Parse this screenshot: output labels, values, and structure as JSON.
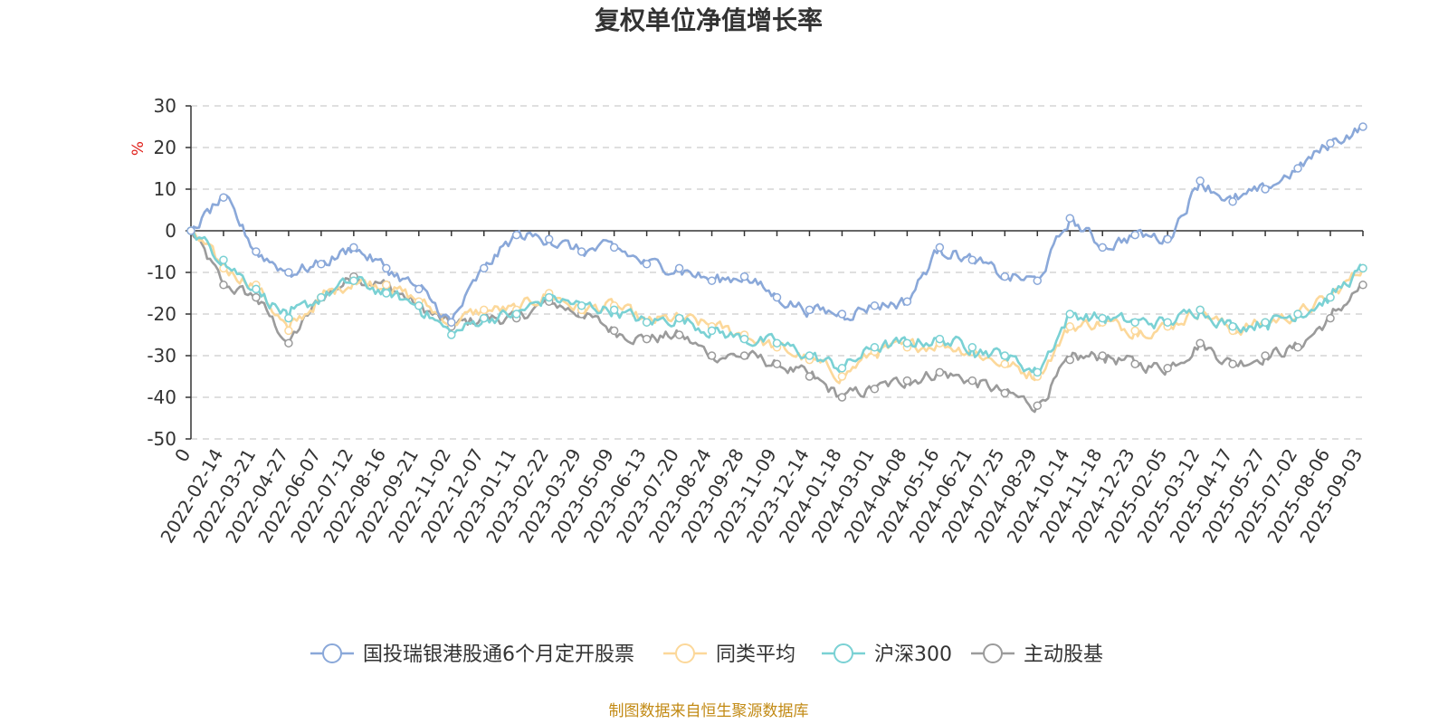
{
  "chart_data": {
    "type": "line",
    "title": "复权单位净值增长率",
    "ylabel": "%",
    "ylim": [
      -50,
      30
    ],
    "yticks": [
      30,
      20,
      10,
      0,
      -10,
      -20,
      -30,
      -40,
      -50
    ],
    "grid": true,
    "legend_position": "bottom",
    "source": "制图数据来自恒生聚源数据库",
    "x": [
      "0",
      "2022-02-14",
      "2022-03-21",
      "2022-04-27",
      "2022-06-07",
      "2022-07-12",
      "2022-08-16",
      "2022-09-21",
      "2022-11-02",
      "2022-12-07",
      "2023-01-11",
      "2023-02-22",
      "2023-03-29",
      "2023-05-09",
      "2023-06-13",
      "2023-07-20",
      "2023-08-24",
      "2023-09-28",
      "2023-11-09",
      "2023-12-14",
      "2024-01-18",
      "2024-03-01",
      "2024-04-08",
      "2024-05-16",
      "2024-06-21",
      "2024-07-25",
      "2024-08-29",
      "2024-10-14",
      "2024-11-18",
      "2024-12-23",
      "2025-02-05",
      "2025-03-12",
      "2025-04-17",
      "2025-05-27",
      "2025-07-02",
      "2025-08-06",
      "2025-09-03"
    ],
    "series": [
      {
        "name": "国投瑞银港股通6个月定开股票",
        "color": "#8aa8d9",
        "values": [
          0,
          8,
          -5,
          -10,
          -8,
          -4,
          -9,
          -14,
          -22,
          -9,
          -1,
          -2,
          -5,
          -4,
          -8,
          -9,
          -12,
          -11,
          -16,
          -19,
          -20,
          -18,
          -17,
          -4,
          -7,
          -11,
          -12,
          3,
          -4,
          -1,
          -2,
          12,
          7,
          10,
          15,
          21,
          25
        ]
      },
      {
        "name": "同类平均",
        "color": "#fcd89a",
        "values": [
          0,
          -9,
          -13,
          -24,
          -16,
          -12,
          -13,
          -17,
          -22,
          -19,
          -19,
          -15,
          -19,
          -18,
          -22,
          -21,
          -23,
          -25,
          -28,
          -31,
          -35,
          -29,
          -28,
          -27,
          -29,
          -32,
          -35,
          -23,
          -22,
          -24,
          -23,
          -19,
          -24,
          -22,
          -20,
          -16,
          -9
        ]
      },
      {
        "name": "沪深300",
        "color": "#7ad1d4",
        "values": [
          0,
          -7,
          -14,
          -21,
          -16,
          -12,
          -15,
          -18,
          -25,
          -21,
          -20,
          -16,
          -18,
          -19,
          -22,
          -21,
          -24,
          -26,
          -27,
          -30,
          -33,
          -28,
          -27,
          -26,
          -28,
          -30,
          -34,
          -20,
          -21,
          -22,
          -22,
          -19,
          -23,
          -22,
          -20,
          -16,
          -9
        ]
      },
      {
        "name": "主动股基",
        "color": "#9b9b9b",
        "values": [
          0,
          -13,
          -16,
          -27,
          -16,
          -11,
          -13,
          -18,
          -23,
          -21,
          -21,
          -17,
          -20,
          -24,
          -26,
          -25,
          -30,
          -30,
          -32,
          -35,
          -40,
          -38,
          -36,
          -34,
          -36,
          -39,
          -42,
          -31,
          -30,
          -32,
          -33,
          -27,
          -32,
          -30,
          -28,
          -21,
          -13
        ]
      }
    ]
  }
}
